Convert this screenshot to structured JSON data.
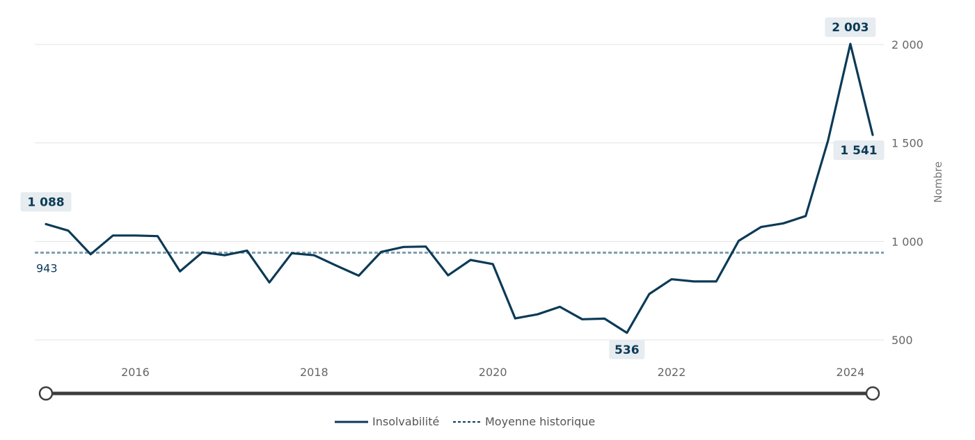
{
  "chart_data": {
    "type": "line",
    "title": "",
    "xlabel": "",
    "ylabel": "Nombre",
    "xlim": [
      2015.0,
      2024.25
    ],
    "ylim": [
      500,
      2000
    ],
    "y_ticks": [
      500,
      1000,
      1500,
      2000
    ],
    "y_tick_labels": [
      "500",
      "1 000",
      "1 500",
      "2 000"
    ],
    "x_ticks": [
      2016,
      2018,
      2020,
      2022,
      2024
    ],
    "x_tick_labels": [
      "2016",
      "2018",
      "2020",
      "2022",
      "2024"
    ],
    "grid": true,
    "legend_position": "bottom-center",
    "colors": {
      "series": "#0b3a57",
      "average": "#7f9fb0",
      "label_bg": "#e6ecef"
    },
    "series": [
      {
        "name": "Insolvabilité",
        "x": [
          2015.0,
          2015.25,
          2015.5,
          2015.75,
          2016.0,
          2016.25,
          2016.5,
          2016.75,
          2017.0,
          2017.25,
          2017.5,
          2017.75,
          2018.0,
          2018.25,
          2018.5,
          2018.75,
          2019.0,
          2019.25,
          2019.5,
          2019.75,
          2020.0,
          2020.25,
          2020.5,
          2020.75,
          2021.0,
          2021.25,
          2021.5,
          2021.75,
          2022.0,
          2022.25,
          2022.5,
          2022.75,
          2023.0,
          2023.25,
          2023.5,
          2023.75,
          2024.0,
          2024.25
        ],
        "values": [
          1088,
          1055,
          935,
          1030,
          1030,
          1027,
          848,
          945,
          930,
          953,
          792,
          940,
          930,
          877,
          826,
          947,
          972,
          974,
          828,
          906,
          885,
          609,
          630,
          668,
          605,
          608,
          536,
          733,
          808,
          797,
          797,
          1003,
          1073,
          1092,
          1129,
          1512,
          2003,
          1541
        ]
      },
      {
        "name": "Moyenne historique",
        "value": 943
      }
    ],
    "annotations": [
      {
        "x": 2015.0,
        "value": 1088,
        "text": "1 088"
      },
      {
        "x": 2021.5,
        "value": 536,
        "text": "536"
      },
      {
        "x": 2024.0,
        "value": 2003,
        "text": "2 003"
      },
      {
        "x": 2024.25,
        "value": 1541,
        "text": "1 541"
      }
    ],
    "average_label": "943"
  },
  "range_slider": {
    "start": 2015.0,
    "end": 2024.25
  }
}
